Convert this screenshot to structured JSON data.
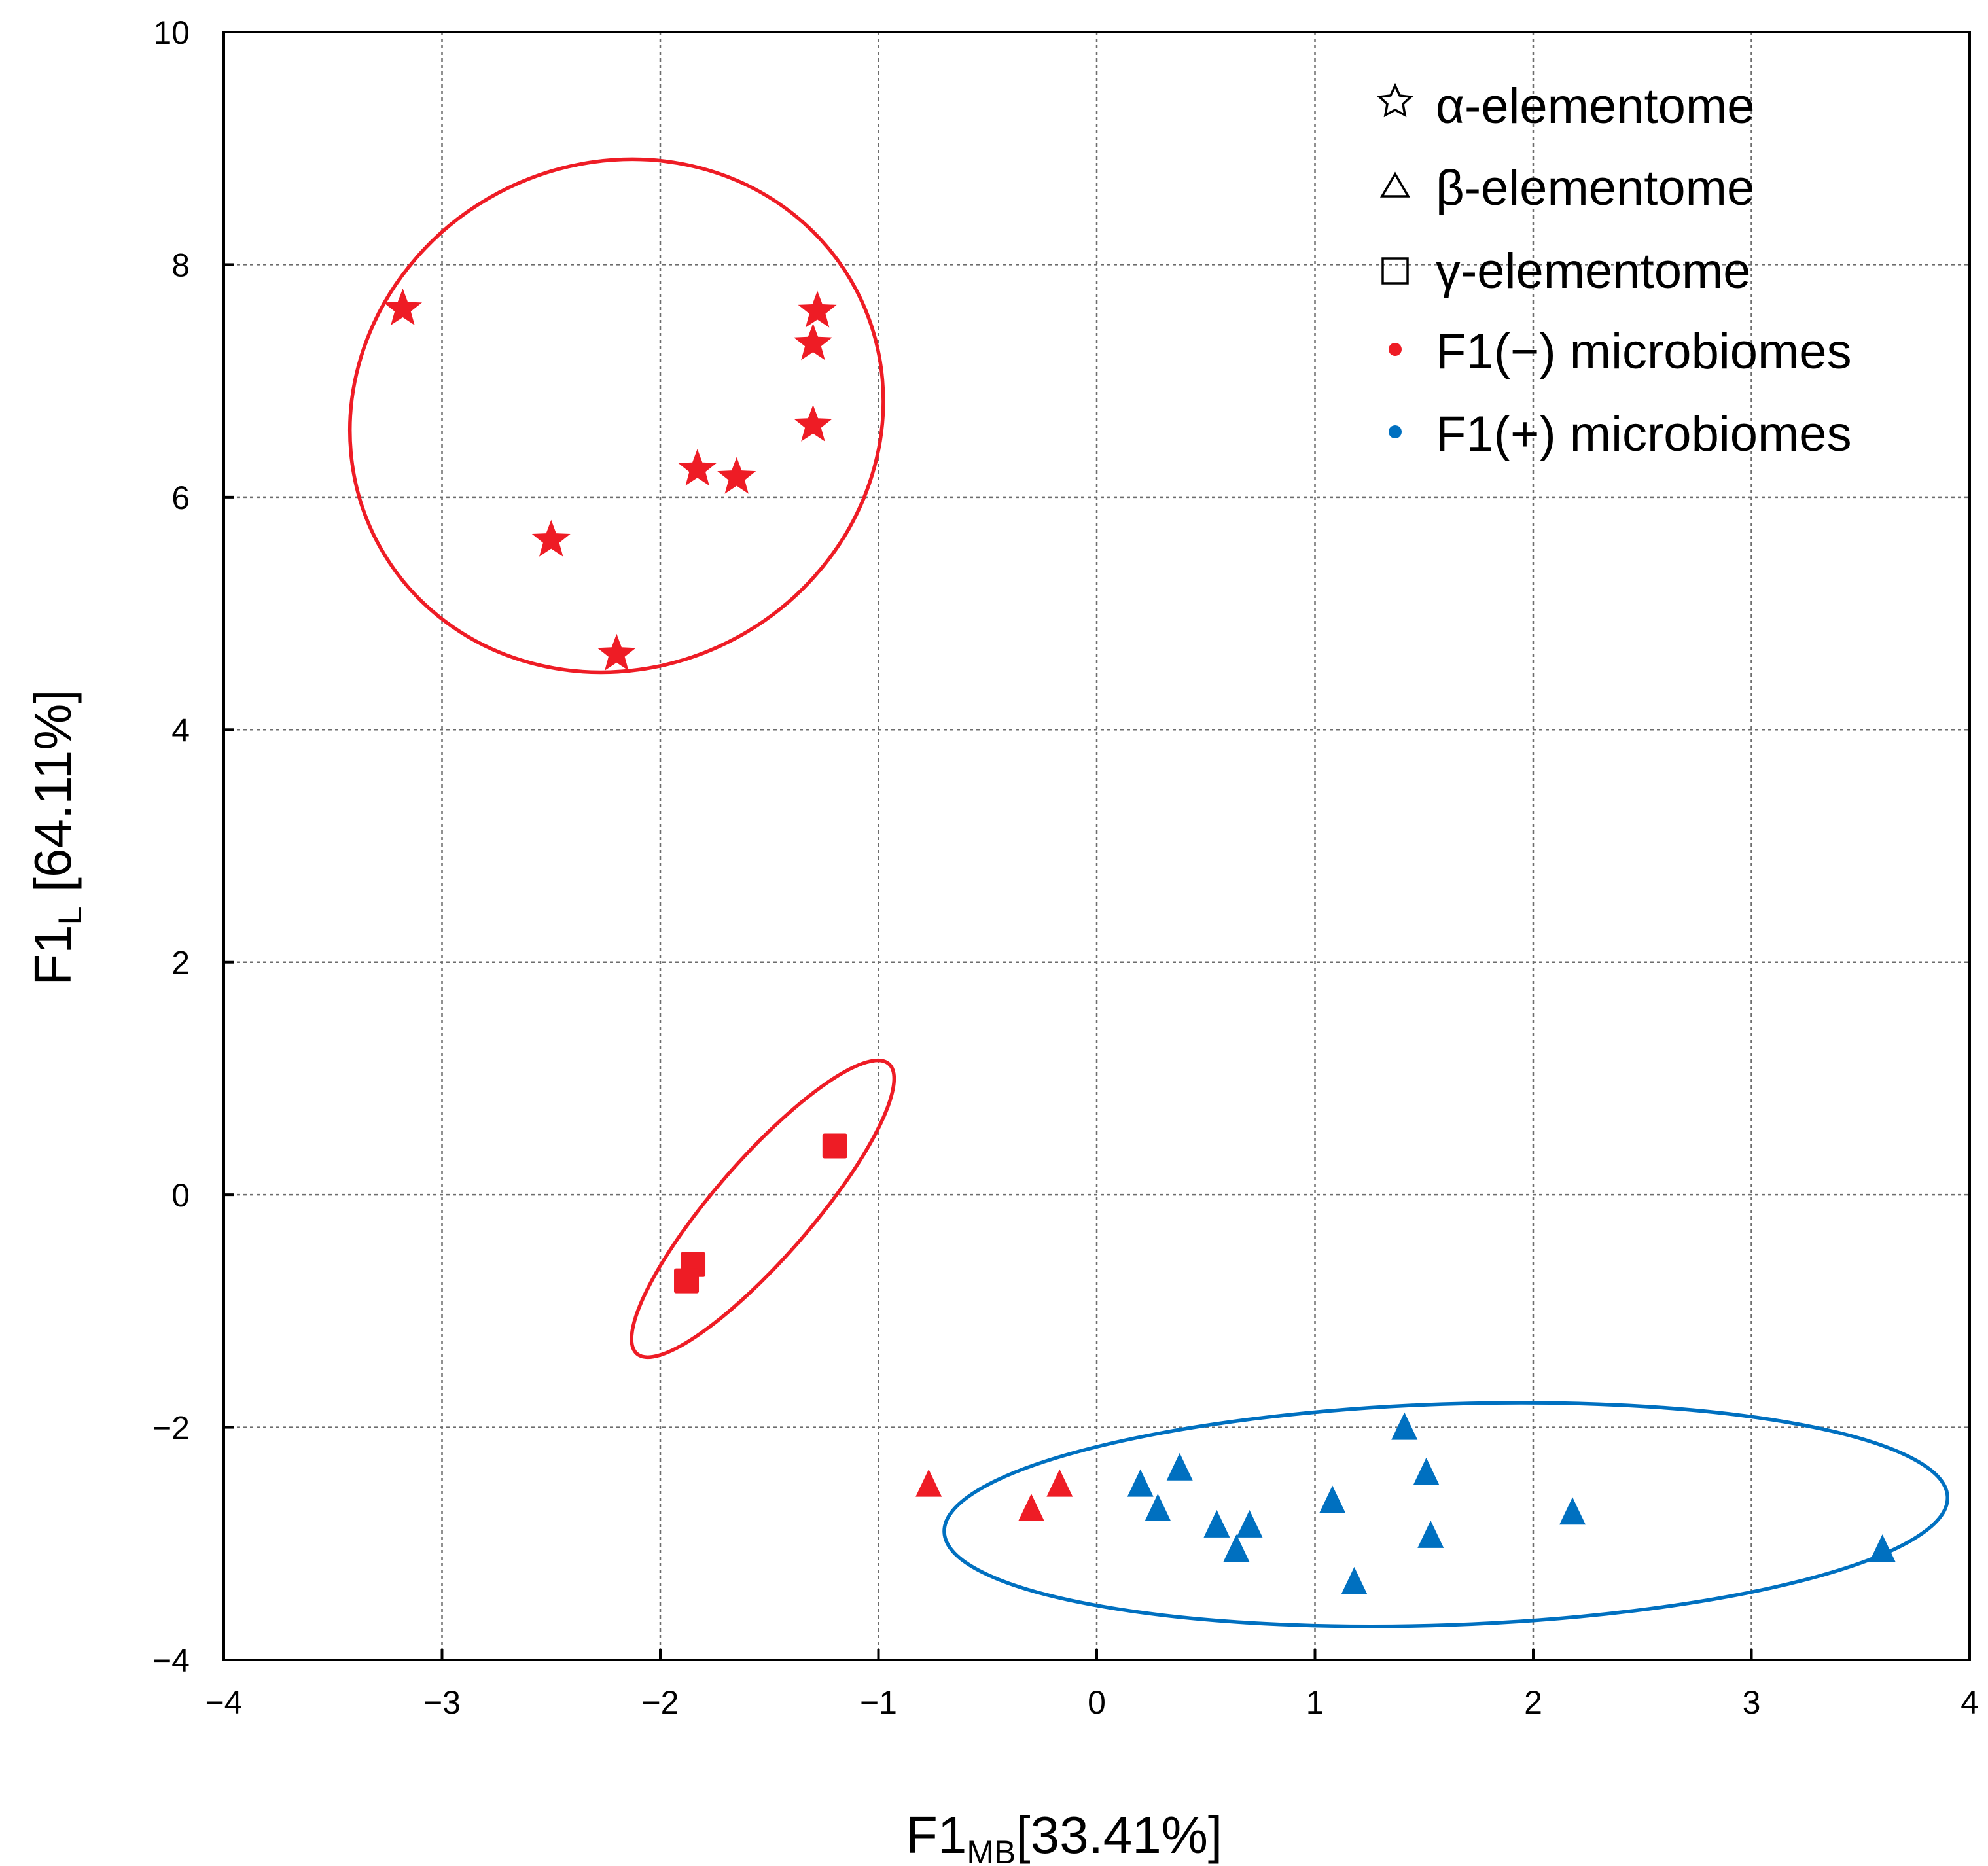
{
  "chart_data": {
    "type": "scatter",
    "xlabel": {
      "main": "F1",
      "sub": "MB",
      "tail": "[33.41%]"
    },
    "ylabel": {
      "main": "F1",
      "sub": "L",
      "tail": " [64.11%]"
    },
    "xlim": [
      -4,
      4
    ],
    "ylim": [
      -4,
      10
    ],
    "grid": true,
    "x_ticks": [
      -4,
      -3,
      -2,
      -1,
      0,
      1,
      2,
      3,
      4
    ],
    "y_ticks": [
      -4,
      -2,
      0,
      2,
      4,
      6,
      8,
      10
    ],
    "x_tick_labels": [
      "−4",
      "−3",
      "−2",
      "−1",
      "0",
      "1",
      "2",
      "3",
      "4"
    ],
    "y_tick_labels": [
      "−4",
      "−2",
      "0",
      "2",
      "4",
      "6",
      "8",
      "10"
    ],
    "colors": {
      "negative": "#ee1c25",
      "positive": "#0070c0"
    },
    "legend": {
      "placement": "top-right",
      "entries": [
        {
          "symbol": "star-outline",
          "label": "α-elementome"
        },
        {
          "symbol": "triangle-outline",
          "label": "β-elementome"
        },
        {
          "symbol": "square-outline",
          "label": "γ-elementome"
        },
        {
          "symbol": "dot-red",
          "label": "F1(−) microbiomes"
        },
        {
          "symbol": "dot-blue",
          "label": "F1(+) microbiomes"
        }
      ]
    },
    "series": [
      {
        "name": "α-elementome F1(−)",
        "marker": "star",
        "color": "#ee1c25",
        "points": [
          [
            -3.18,
            7.62
          ],
          [
            -1.28,
            7.6
          ],
          [
            -1.3,
            7.32
          ],
          [
            -1.3,
            6.62
          ],
          [
            -1.83,
            6.24
          ],
          [
            -1.65,
            6.17
          ],
          [
            -2.5,
            5.63
          ],
          [
            -2.2,
            4.65
          ]
        ]
      },
      {
        "name": "γ-elementome F1(−)",
        "marker": "square",
        "color": "#ee1c25",
        "points": [
          [
            -1.2,
            0.42
          ],
          [
            -1.85,
            -0.6
          ],
          [
            -1.88,
            -0.74
          ]
        ]
      },
      {
        "name": "β-elementome F1(−)",
        "marker": "triangle",
        "color": "#ee1c25",
        "points": [
          [
            -0.77,
            -2.49
          ],
          [
            -0.3,
            -2.7
          ],
          [
            -0.17,
            -2.49
          ]
        ]
      },
      {
        "name": "β-elementome F1(+)",
        "marker": "triangle",
        "color": "#0070c0",
        "points": [
          [
            0.2,
            -2.49
          ],
          [
            0.38,
            -2.35
          ],
          [
            0.28,
            -2.7
          ],
          [
            0.55,
            -2.84
          ],
          [
            0.7,
            -2.84
          ],
          [
            0.64,
            -3.05
          ],
          [
            1.08,
            -2.63
          ],
          [
            1.18,
            -3.33
          ],
          [
            1.41,
            -2.0
          ],
          [
            1.51,
            -2.39
          ],
          [
            1.53,
            -2.93
          ],
          [
            2.18,
            -2.73
          ],
          [
            3.6,
            -3.05
          ]
        ]
      }
    ],
    "ellipses": [
      {
        "group": "α-elementome",
        "color": "#ee1c25",
        "center": [
          -2.2,
          6.7
        ],
        "rx": 1.24,
        "ry": 2.17,
        "rotation_deg": -28
      },
      {
        "group": "γ-elementome",
        "color": "#ee1c25",
        "center": [
          -1.53,
          -0.12
        ],
        "rx": 0.88,
        "ry": 0.42,
        "rotation_deg": -49
      },
      {
        "group": "β-elementome",
        "color": "#0070c0",
        "center": [
          1.6,
          -2.75
        ],
        "rx": 2.3,
        "ry": 0.95,
        "rotation_deg": -2
      }
    ]
  }
}
